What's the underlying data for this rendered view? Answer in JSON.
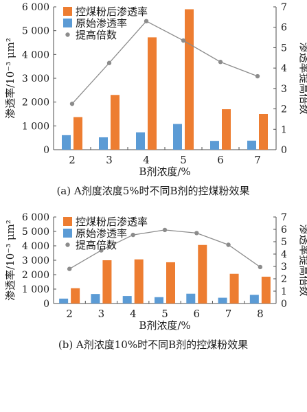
{
  "chart_data": [
    {
      "type": "bar",
      "caption": "(a)  A剂度浓度5%时不同B剂的控煤粉效果",
      "xlabel": "B剂浓度/%",
      "ylabel": "渗透率/10⁻³ μm²",
      "y2label": "渗透率提高倍数",
      "categories": [
        "2",
        "3",
        "4",
        "5",
        "6",
        "7"
      ],
      "ylim": [
        0,
        6000
      ],
      "y2lim": [
        0,
        7
      ],
      "yticks": [
        "0",
        "1 000",
        "2 000",
        "3 000",
        "4 000",
        "5 000",
        "6 000"
      ],
      "y2ticks": [
        "0",
        "1",
        "2",
        "3",
        "4",
        "5",
        "6",
        "7"
      ],
      "legend_position": "top-left",
      "series": [
        {
          "name": "控煤粉后渗透率",
          "kind": "bar",
          "color": "#ed7d31",
          "values": [
            1370,
            2300,
            4720,
            5900,
            1700,
            1500
          ]
        },
        {
          "name": "原始渗透率",
          "kind": "bar",
          "color": "#5b9bd5",
          "values": [
            610,
            520,
            730,
            1080,
            370,
            380
          ]
        },
        {
          "name": "提高倍数",
          "kind": "line",
          "axis": "right",
          "color": "#8c8c8c",
          "values": [
            2.25,
            4.25,
            6.3,
            5.35,
            4.3,
            3.6
          ]
        }
      ]
    },
    {
      "type": "bar",
      "caption": "(b)  A剂浓度10%时不同B剂的控煤粉效果",
      "xlabel": "B剂浓度/%",
      "ylabel": "渗透率/10⁻³ μm²",
      "y2label": "渗透率提高倍数",
      "categories": [
        "2",
        "3",
        "4",
        "5",
        "6",
        "7",
        "8"
      ],
      "ylim": [
        0,
        6000
      ],
      "y2lim": [
        0,
        7
      ],
      "yticks": [
        "0",
        "1 000",
        "2 000",
        "3 000",
        "4 000",
        "5 000",
        "6 000"
      ],
      "y2ticks": [
        "0",
        "1",
        "2",
        "3",
        "4",
        "5",
        "6",
        "7"
      ],
      "legend_position": "top-left",
      "series": [
        {
          "name": "控煤粉后渗透率",
          "kind": "bar",
          "color": "#ed7d31",
          "values": [
            1060,
            3000,
            3060,
            2860,
            4060,
            2060,
            1860
          ]
        },
        {
          "name": "原始渗透率",
          "kind": "bar",
          "color": "#5b9bd5",
          "values": [
            340,
            660,
            520,
            440,
            680,
            400,
            600
          ]
        },
        {
          "name": "提高倍数",
          "kind": "line",
          "axis": "right",
          "color": "#8c8c8c",
          "values": [
            2.8,
            4.3,
            5.55,
            5.95,
            5.7,
            4.75,
            2.95
          ]
        }
      ]
    }
  ]
}
